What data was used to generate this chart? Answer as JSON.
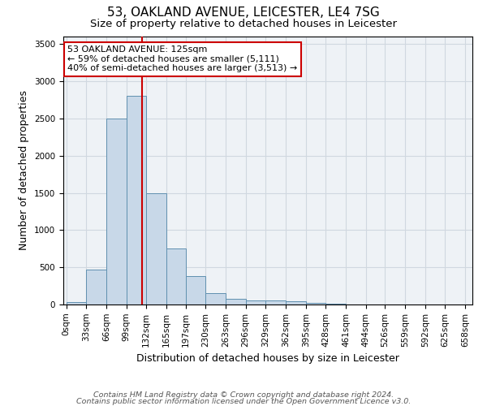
{
  "title": "53, OAKLAND AVENUE, LEICESTER, LE4 7SG",
  "subtitle": "Size of property relative to detached houses in Leicester",
  "xlabel": "Distribution of detached houses by size in Leicester",
  "ylabel": "Number of detached properties",
  "footnote1": "Contains HM Land Registry data © Crown copyright and database right 2024.",
  "footnote2": "Contains public sector information licensed under the Open Government Licence v3.0.",
  "property_size": 125,
  "property_label": "53 OAKLAND AVENUE: 125sqm",
  "annotation_line1": "← 59% of detached houses are smaller (5,111)",
  "annotation_line2": "40% of semi-detached houses are larger (3,513) →",
  "bar_edges": [
    0,
    33,
    66,
    99,
    132,
    165,
    197,
    230,
    263,
    296,
    329,
    362,
    395,
    428,
    461,
    494,
    526,
    559,
    592,
    625,
    658
  ],
  "bar_heights": [
    30,
    470,
    2500,
    2800,
    1500,
    750,
    380,
    150,
    75,
    50,
    50,
    40,
    20,
    10,
    5,
    3,
    2,
    1,
    1,
    1
  ],
  "bar_color": "#c8d8e8",
  "bar_edgecolor": "#6090b0",
  "redline_color": "#cc0000",
  "annotation_box_color": "#cc0000",
  "grid_color": "#d0d8e0",
  "bg_color": "#eef2f6",
  "ylim": [
    0,
    3600
  ],
  "yticks": [
    0,
    500,
    1000,
    1500,
    2000,
    2500,
    3000,
    3500
  ],
  "title_fontsize": 11,
  "subtitle_fontsize": 9.5,
  "axis_label_fontsize": 9,
  "tick_fontsize": 7.5,
  "footnote_fontsize": 6.8,
  "annotation_fontsize": 8
}
